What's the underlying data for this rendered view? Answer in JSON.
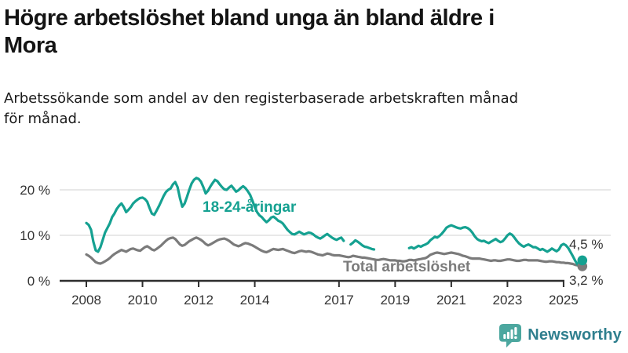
{
  "title": "Högre arbetslöshet bland unga än bland äldre i\nMora",
  "subtitle": "Arbetssökande som andel av den registerbaserade arbetskraften månad\nför månad.",
  "branding": {
    "logo_text": "Newsworthy",
    "logo_icon": "bar-chart-speech-bubble-icon",
    "icon_color": "#4CA79F",
    "text_color": "#2F7F8E"
  },
  "chart_data": {
    "type": "line",
    "title": "Högre arbetslöshet bland unga än bland äldre i Mora",
    "subtitle": "Arbetssökande som andel av den registerbaserade arbetskraften månad för månad.",
    "x_unit": "month",
    "x_start": "2008-01",
    "x_end": "2025-09",
    "x_tick_labels": [
      "2008",
      "2010",
      "2012",
      "2014",
      "2017",
      "2019",
      "2021",
      "2023",
      "2025"
    ],
    "y_ticks": [
      {
        "value": 0,
        "label": "0 %"
      },
      {
        "value": 10,
        "label": "10 %"
      },
      {
        "value": 20,
        "label": "20 %"
      }
    ],
    "ylim": [
      0,
      24
    ],
    "grid": "horizontal",
    "legend_position": "inline-labels",
    "colors": {
      "grid": "#d9d9d9",
      "axis": "#2e2e2e",
      "tick_text": "#333333",
      "end_label_text": "#333333"
    },
    "series": [
      {
        "name": "Total arbetslöshet",
        "color": "#7b7b7b",
        "end_label": "3,2 %",
        "end_value": 3.2,
        "values": [
          5.8,
          5.5,
          5.1,
          4.6,
          4.1,
          3.9,
          3.8,
          4.0,
          4.3,
          4.6,
          5.0,
          5.5,
          5.9,
          6.2,
          6.5,
          6.8,
          6.6,
          6.4,
          6.7,
          7.0,
          7.1,
          6.9,
          6.7,
          6.6,
          7.0,
          7.4,
          7.6,
          7.3,
          6.9,
          6.7,
          7.0,
          7.4,
          7.8,
          8.3,
          8.8,
          9.2,
          9.4,
          9.5,
          9.2,
          8.6,
          8.0,
          7.7,
          7.9,
          8.3,
          8.7,
          9.0,
          9.3,
          9.5,
          9.3,
          9.0,
          8.6,
          8.1,
          7.8,
          8.0,
          8.3,
          8.6,
          8.9,
          9.1,
          9.2,
          9.3,
          9.1,
          8.8,
          8.4,
          8.0,
          7.8,
          7.6,
          7.8,
          8.1,
          8.3,
          8.2,
          8.0,
          7.8,
          7.5,
          7.2,
          6.9,
          6.6,
          6.4,
          6.3,
          6.5,
          6.8,
          7.0,
          6.9,
          6.8,
          6.9,
          7.0,
          6.8,
          6.6,
          6.4,
          6.2,
          6.1,
          6.3,
          6.5,
          6.6,
          6.5,
          6.4,
          6.5,
          6.4,
          6.2,
          6.0,
          5.8,
          5.7,
          5.6,
          5.8,
          6.0,
          5.9,
          5.7,
          5.6,
          5.6,
          5.6,
          5.5,
          5.4,
          5.3,
          5.2,
          5.3,
          5.5,
          5.4,
          5.3,
          5.2,
          5.1,
          5.1,
          5.0,
          4.9,
          4.8,
          4.7,
          4.6,
          4.6,
          4.7,
          4.8,
          4.7,
          4.6,
          4.5,
          4.5,
          4.5,
          4.4,
          4.4,
          4.3,
          4.3,
          4.4,
          4.6,
          4.6,
          4.5,
          4.6,
          4.7,
          4.8,
          4.9,
          5.0,
          5.3,
          5.7,
          5.9,
          6.1,
          6.2,
          6.1,
          6.0,
          5.9,
          6.0,
          6.1,
          6.2,
          6.1,
          6.0,
          5.9,
          5.7,
          5.5,
          5.4,
          5.2,
          5.0,
          4.9,
          4.9,
          4.9,
          4.9,
          4.8,
          4.7,
          4.6,
          4.5,
          4.4,
          4.5,
          4.5,
          4.4,
          4.4,
          4.5,
          4.6,
          4.7,
          4.7,
          4.6,
          4.5,
          4.4,
          4.4,
          4.5,
          4.6,
          4.6,
          4.5,
          4.5,
          4.5,
          4.5,
          4.5,
          4.4,
          4.3,
          4.2,
          4.2,
          4.3,
          4.3,
          4.2,
          4.1,
          4.1,
          4.0,
          4.0,
          3.9,
          3.9,
          3.8,
          3.7,
          3.5,
          3.4,
          3.3,
          3.2
        ]
      },
      {
        "name": "18-24-åringar",
        "color": "#15a191",
        "end_label": "4,5 %",
        "end_value": 4.5,
        "values": [
          12.7,
          12.3,
          11.2,
          8.6,
          6.7,
          6.4,
          7.4,
          9.0,
          10.6,
          11.6,
          12.6,
          14.0,
          14.8,
          15.8,
          16.5,
          17.0,
          16.2,
          15.1,
          15.6,
          16.2,
          17.0,
          17.5,
          17.9,
          18.2,
          18.3,
          18.0,
          17.4,
          16.0,
          14.8,
          14.5,
          15.4,
          16.4,
          17.5,
          18.6,
          19.5,
          20.0,
          20.3,
          21.2,
          21.7,
          20.6,
          18.2,
          16.3,
          17.0,
          18.4,
          20.0,
          21.4,
          22.2,
          22.6,
          22.4,
          21.8,
          20.6,
          19.2,
          19.8,
          20.7,
          21.5,
          22.2,
          21.9,
          21.2,
          20.6,
          20.1,
          20.0,
          20.5,
          20.9,
          20.3,
          19.6,
          19.9,
          20.4,
          20.8,
          20.4,
          19.7,
          18.9,
          17.6,
          16.2,
          15.1,
          14.4,
          14.0,
          13.4,
          12.9,
          13.3,
          13.9,
          14.1,
          13.7,
          13.2,
          13.0,
          12.6,
          11.9,
          11.2,
          10.7,
          10.3,
          10.2,
          10.5,
          10.8,
          10.5,
          10.2,
          10.4,
          10.6,
          10.5,
          10.2,
          9.8,
          9.5,
          9.3,
          9.6,
          10.0,
          10.3,
          9.9,
          9.5,
          9.2,
          9.0,
          9.3,
          9.5,
          8.8,
          null,
          null,
          8.0,
          8.4,
          8.9,
          8.6,
          8.2,
          7.8,
          7.5,
          7.4,
          7.2,
          7.0,
          6.9,
          null,
          null,
          null,
          null,
          null,
          null,
          null,
          null,
          null,
          null,
          null,
          null,
          null,
          null,
          7.2,
          7.4,
          7.1,
          7.4,
          7.7,
          7.5,
          7.8,
          8.0,
          8.3,
          8.9,
          9.3,
          9.7,
          9.5,
          9.9,
          10.4,
          11.0,
          11.7,
          12.0,
          12.2,
          12.0,
          11.8,
          11.6,
          11.5,
          11.7,
          11.8,
          11.6,
          11.2,
          10.6,
          9.8,
          9.2,
          8.9,
          8.7,
          8.8,
          8.5,
          8.3,
          8.6,
          8.9,
          9.2,
          8.8,
          8.5,
          8.7,
          9.3,
          10.0,
          10.4,
          10.1,
          9.5,
          8.8,
          8.2,
          7.8,
          7.5,
          7.8,
          8.0,
          7.7,
          7.4,
          7.4,
          7.1,
          6.8,
          7.0,
          6.7,
          6.4,
          6.7,
          7.1,
          6.8,
          6.5,
          6.9,
          7.8,
          8.1,
          7.8,
          7.2,
          6.3,
          5.4,
          4.4,
          3.6,
          4.1,
          4.5
        ]
      }
    ]
  }
}
